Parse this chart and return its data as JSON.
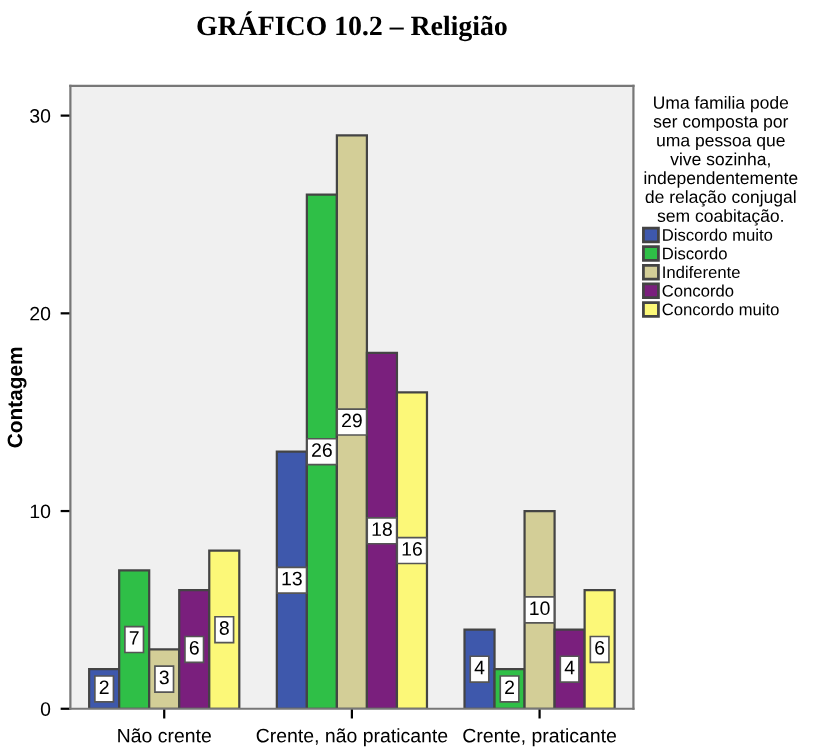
{
  "chart_data": {
    "type": "bar",
    "title": "GRÁFICO 10.2 – Religião",
    "ylabel": "Contagem",
    "legend_title": "Uma familia pode\nser composta por\numa pessoa que\nvive sozinha,\nindependentemente\nde relação conjugal\nsem coabitação.",
    "categories": [
      "Não crente",
      "Crente, não praticante",
      "Crente, praticante"
    ],
    "series": [
      {
        "name": "Discordo muito",
        "color": "#3e58ac",
        "values": [
          2,
          13,
          4
        ]
      },
      {
        "name": "Discordo",
        "color": "#2fbf47",
        "values": [
          7,
          26,
          2
        ]
      },
      {
        "name": "Indiferente",
        "color": "#d3ce97",
        "values": [
          3,
          29,
          10
        ]
      },
      {
        "name": "Concordo",
        "color": "#7a1f7d",
        "values": [
          6,
          18,
          4
        ]
      },
      {
        "name": "Concordo muito",
        "color": "#fcf878",
        "values": [
          8,
          16,
          6
        ]
      }
    ],
    "ylim": [
      0,
      31.5
    ],
    "yticks": [
      0,
      10,
      20,
      30
    ],
    "grid": false,
    "legend": "right",
    "data_labels": true
  }
}
